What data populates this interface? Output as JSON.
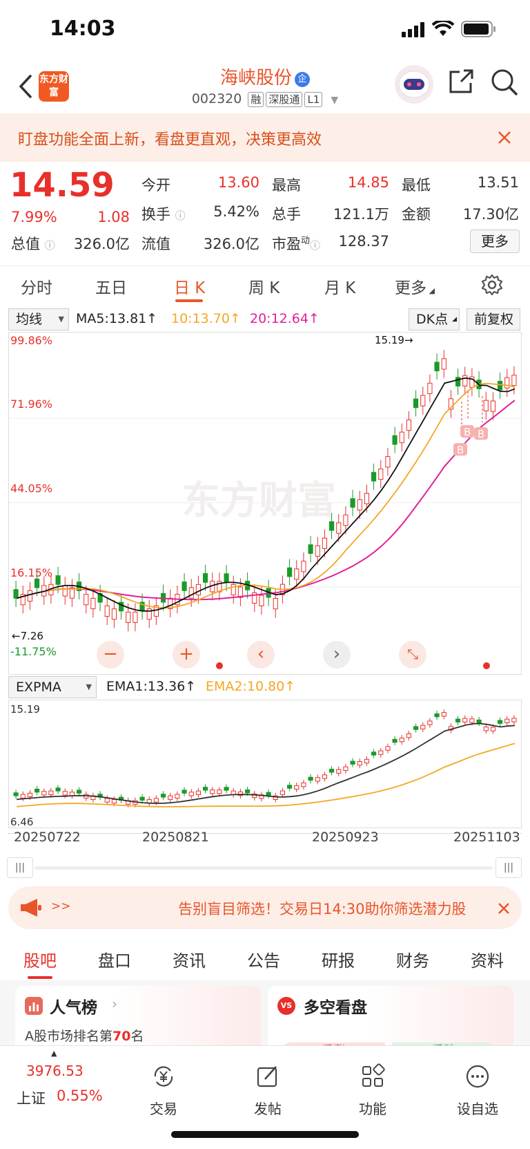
{
  "status": {
    "time": "14:03"
  },
  "header": {
    "logo_text": "东方财富",
    "stock_name": "海峡股份",
    "qiye_badge": "企",
    "code": "002320",
    "tags": [
      "融",
      "深股通",
      "L1"
    ]
  },
  "banner": {
    "text": "盯盘功能全面上新，看盘更直观，决策更高效"
  },
  "quote": {
    "price": "14.59",
    "pct": "7.99%",
    "change": "1.08",
    "open_label": "今开",
    "open": "13.60",
    "high_label": "最高",
    "high": "14.85",
    "low_label": "最低",
    "low": "13.51",
    "turnover_label": "换手",
    "turnover": "5.42%",
    "volume_label": "总手",
    "volume": "121.1万",
    "amount_label": "金额",
    "amount": "17.30亿",
    "mktcap_label": "总值",
    "mktcap": "326.0亿",
    "float_label": "流值",
    "float_cap": "326.0亿",
    "pe_label": "市盈",
    "pe_sup": "动",
    "pe": "128.37",
    "more": "更多"
  },
  "tabs": [
    "分时",
    "五日",
    "日 K",
    "周 K",
    "月 K",
    "更多"
  ],
  "active_tab": "日 K",
  "ma_bar": {
    "select": "均线",
    "ma5": "MA5:13.81↑",
    "ma10": "10:13.70↑",
    "ma20": "20:12.64↑",
    "dk": "DK点",
    "adjust": "前复权"
  },
  "kchart": {
    "pct_labels": [
      "99.86%",
      "71.96%",
      "44.05%",
      "16.15%",
      "-11.75%"
    ],
    "watermark": "东方财富",
    "max_label": "15.19→",
    "min_label": "←7.26",
    "b_marks": [
      "B",
      "B",
      "B"
    ]
  },
  "expma_bar": {
    "select": "EXPMA",
    "ema1": "EMA1:13.36↑",
    "ema2": "EMA2:10.80↑"
  },
  "echart": {
    "top_label": "15.19",
    "bottom_label": "6.46"
  },
  "dates": [
    "20250722",
    "20250821",
    "20250923",
    "20251103"
  ],
  "ad": {
    "arrows": ">>",
    "text": "告别盲目筛选！交易日14:30助你筛选潜力股"
  },
  "bottom_tabs": [
    "股吧",
    "盘口",
    "资讯",
    "公告",
    "研报",
    "财务",
    "资料"
  ],
  "active_bottom_tab": "股吧",
  "cards": {
    "popular_title": "人气榜",
    "popular_sub_prefix": "A股市场排名第",
    "popular_rank": "70",
    "popular_sub_suffix": "名",
    "vs_badge": "VS",
    "duokong_title": "多空看盘",
    "bull_label": "看涨",
    "bear_label": "看跌"
  },
  "navbar": {
    "index_value": "3976.53",
    "index_name": "上证",
    "index_pct": "0.55%",
    "items": [
      "交易",
      "发帖",
      "功能",
      "设自选"
    ]
  },
  "colors": {
    "up": "#e8302a",
    "down": "#1a9a2a",
    "accent": "#e8552a",
    "ma10": "#f5a623",
    "ma20": "#e0209a"
  }
}
